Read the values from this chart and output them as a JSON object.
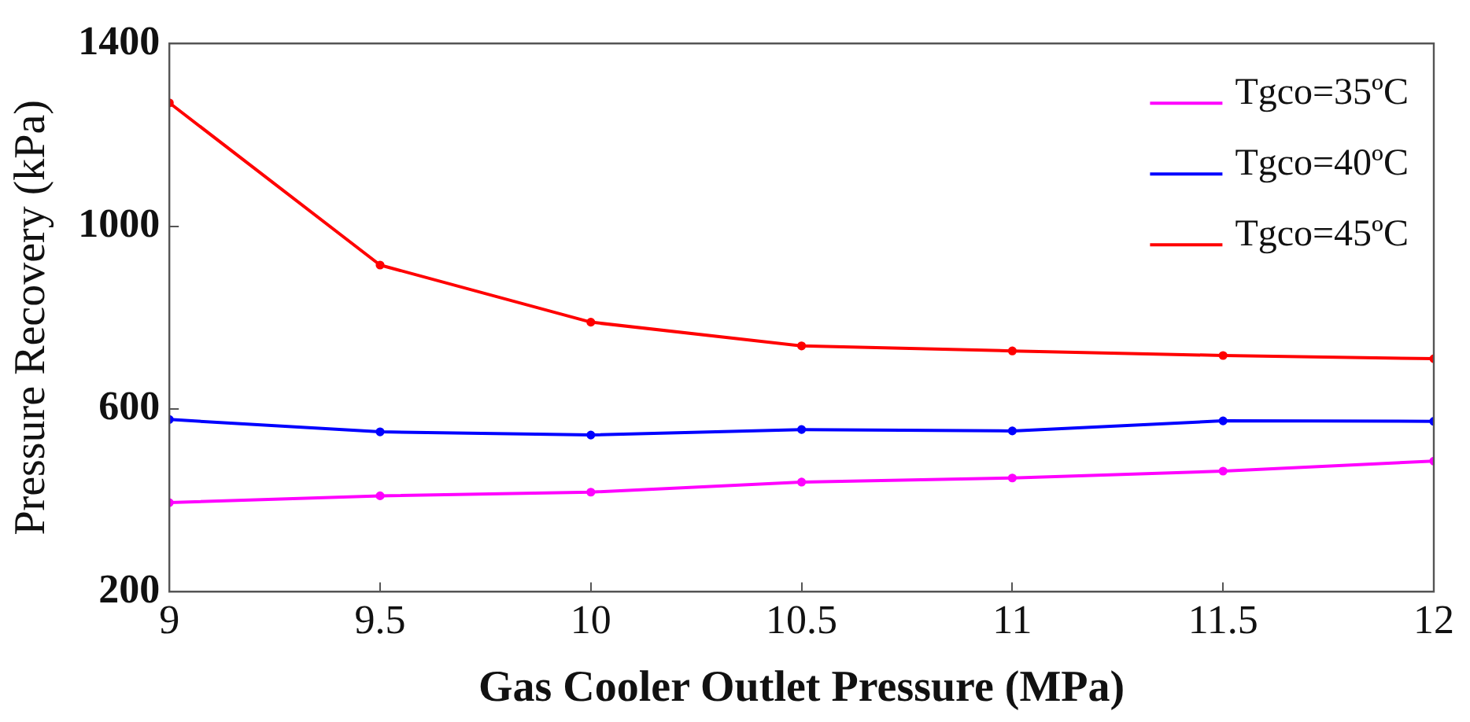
{
  "chart_data": {
    "type": "line",
    "xlabel": "Gas Cooler Outlet Pressure (MPa)",
    "ylabel": "Pressure Recovery (kPa)",
    "x": [
      9,
      9.5,
      10,
      10.5,
      11,
      11.5,
      12
    ],
    "xlim": [
      9,
      12
    ],
    "xticks": [
      9,
      9.5,
      10,
      10.5,
      11,
      11.5,
      12
    ],
    "ylim": [
      200,
      1400
    ],
    "yticks": [
      200,
      600,
      1000,
      1400
    ],
    "grid": false,
    "legend": "top right",
    "marker": "circle",
    "line_style": "solid",
    "series": [
      {
        "name": "Tgco=35ºC",
        "color": "#ff00ff",
        "values": [
          395,
          410,
          418,
          440,
          449,
          464,
          486
        ]
      },
      {
        "name": "Tgco=40ºC",
        "color": "#0000ff",
        "values": [
          577,
          550,
          543,
          555,
          552,
          574,
          573
        ]
      },
      {
        "name": "Tgco=45ºC",
        "color": "#ff0000",
        "values": [
          1270,
          915,
          790,
          738,
          727,
          717,
          710
        ]
      }
    ]
  }
}
